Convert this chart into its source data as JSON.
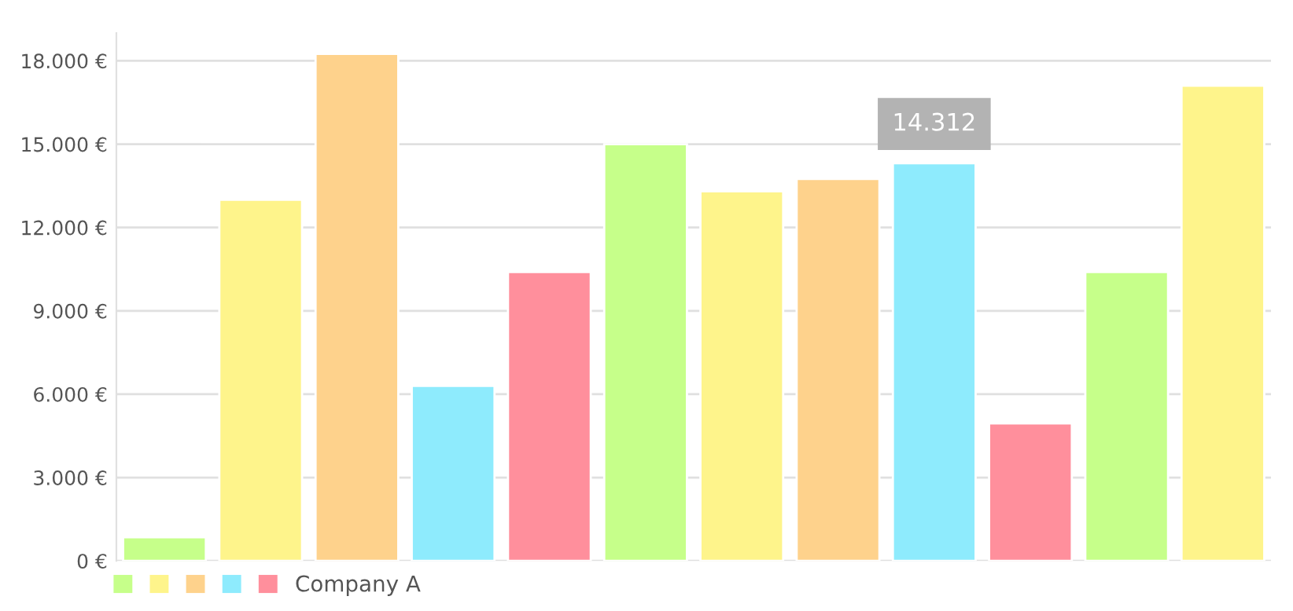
{
  "chart_data": {
    "type": "bar",
    "categories": [
      null,
      null,
      null,
      null,
      null,
      null,
      null,
      null,
      null,
      null,
      null,
      null
    ],
    "series": [
      {
        "name": "Company A",
        "colors": [
          "#c6ff8a",
          "#fef48b",
          "#fed28c",
          "#8eebfd",
          "#ff8f9c",
          "#c6ff8a",
          "#fef48b",
          "#fed28c",
          "#8eebfd",
          "#ff8f9c",
          "#c6ff8a",
          "#fef48b"
        ],
        "values": [
          850,
          13000,
          18250,
          6300,
          10400,
          15000,
          13300,
          13750,
          14312,
          4950,
          10400,
          17100
        ],
        "value_labels": [
          null,
          null,
          null,
          null,
          null,
          null,
          null,
          null,
          "14.312",
          null,
          null,
          null
        ]
      }
    ],
    "ylim": [
      0,
      19000
    ],
    "yticks": [
      {
        "value": 0,
        "label": "0 €"
      },
      {
        "value": 3000,
        "label": "3.000 €"
      },
      {
        "value": 6000,
        "label": "6.000 €"
      },
      {
        "value": 9000,
        "label": "9.000 €"
      },
      {
        "value": 12000,
        "label": "12.000 €"
      },
      {
        "value": 15000,
        "label": "15.000 €"
      },
      {
        "value": 18000,
        "label": "18.000 €"
      }
    ],
    "grid": "y",
    "legend": "bottom left",
    "tick_labels": "y"
  }
}
